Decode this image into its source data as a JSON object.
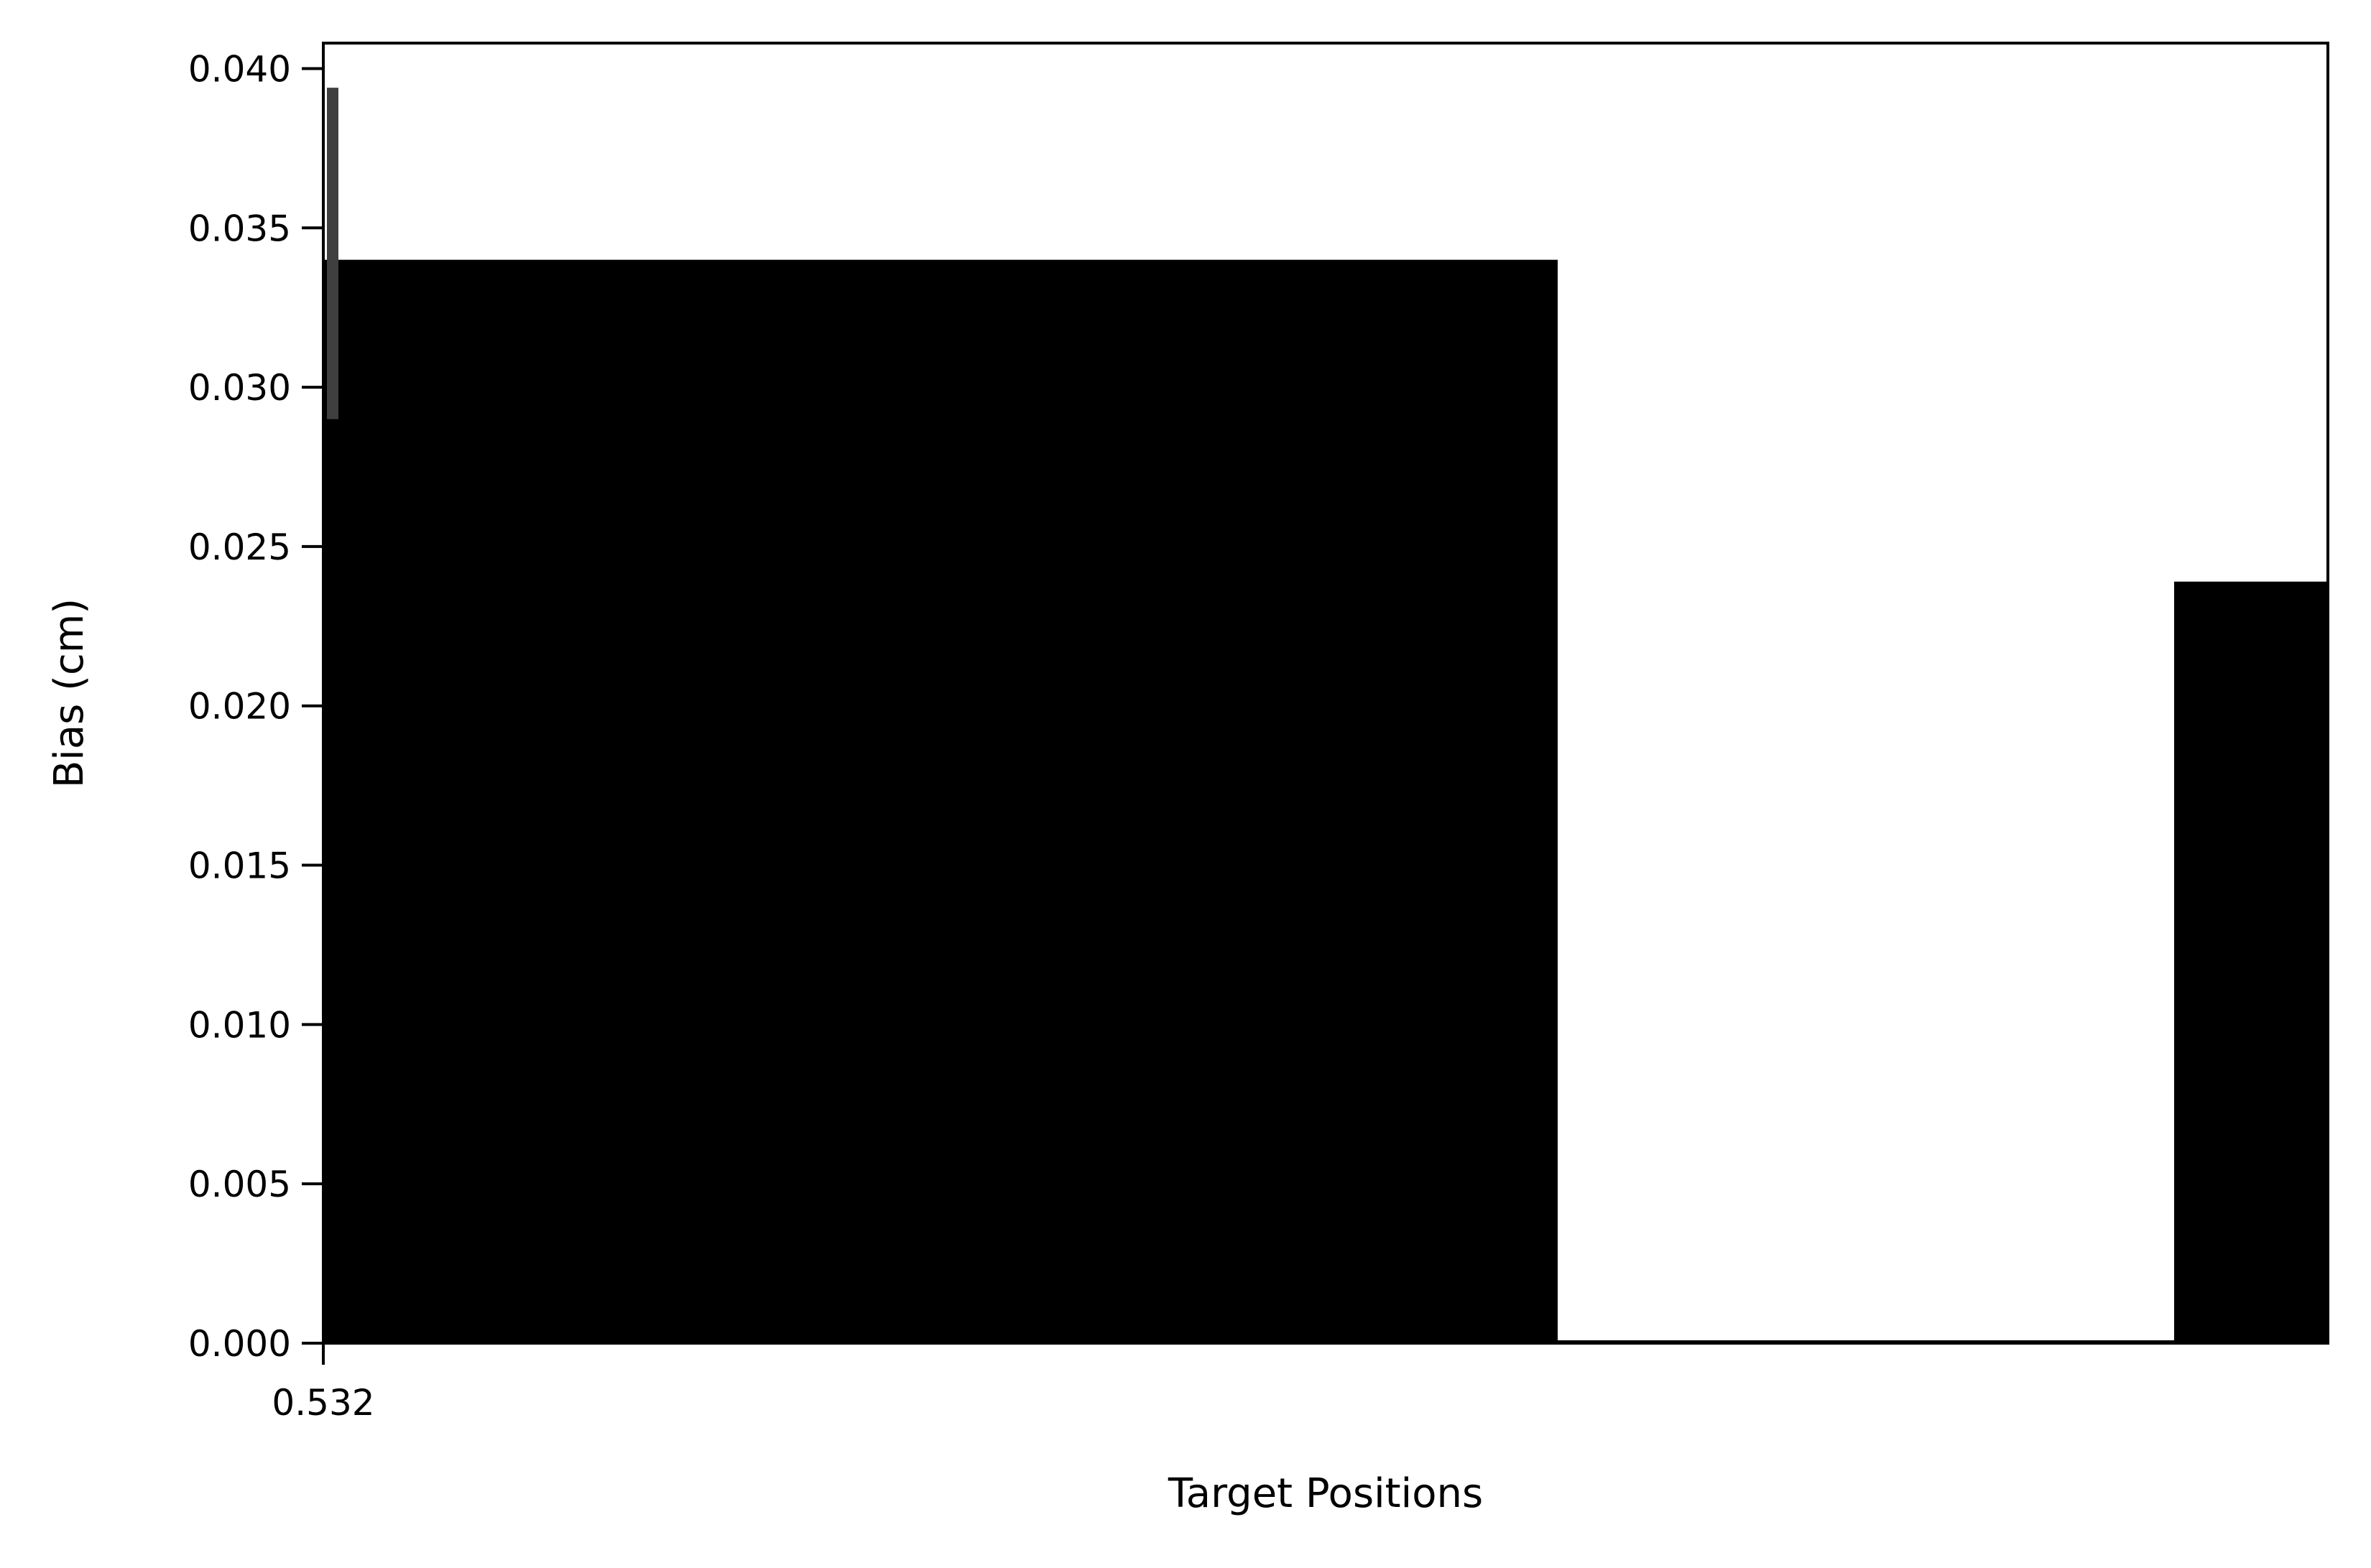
{
  "chart_data": {
    "type": "bar",
    "title": "",
    "xlabel": "Target Positions",
    "ylabel": "Bias (cm)",
    "x_tick_labels": [
      "0.532"
    ],
    "y_ticks": [
      0.0,
      0.005,
      0.01,
      0.015,
      0.02,
      0.025,
      0.03,
      0.035,
      0.04
    ],
    "y_tick_labels": [
      "0.000",
      "0.005",
      "0.010",
      "0.015",
      "0.020",
      "0.025",
      "0.030",
      "0.035",
      "0.040"
    ],
    "ylim": [
      0,
      0.0408
    ],
    "grid": false,
    "legend": "none",
    "bar_color": "#000000",
    "errorbar_color": "#3f3f3f",
    "bars": [
      {
        "value": 0.034,
        "error_low": 0.029,
        "error_high": 0.0394
      },
      {
        "value": 0.0239
      }
    ]
  }
}
